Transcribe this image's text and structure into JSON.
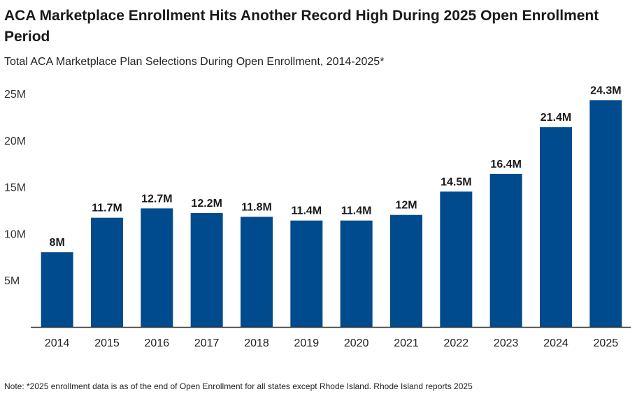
{
  "title": "ACA Marketplace Enrollment Hits Another Record High During 2025 Open Enrollment Period",
  "subtitle": "Total ACA Marketplace Plan Selections During Open Enrollment, 2014-2025*",
  "note": "Note: *2025 enrollment data is as of the end of Open Enrollment for all states except Rhode Island. Rhode Island reports 2025",
  "colors": {
    "bar": "#004B8D",
    "axis": "#333333"
  },
  "chart_data": {
    "type": "bar",
    "title": "Total ACA Marketplace Plan Selections During Open Enrollment, 2014-2025*",
    "xlabel": "",
    "ylabel": "",
    "unit": "millions",
    "ylim": [
      0,
      25
    ],
    "y_ticks": [
      5,
      10,
      15,
      20,
      25
    ],
    "y_tick_labels": [
      "5M",
      "10M",
      "15M",
      "20M",
      "25M"
    ],
    "grid": false,
    "categories": [
      "2014",
      "2015",
      "2016",
      "2017",
      "2018",
      "2019",
      "2020",
      "2021",
      "2022",
      "2023",
      "2024",
      "2025"
    ],
    "values": [
      8,
      11.7,
      12.7,
      12.2,
      11.8,
      11.4,
      11.4,
      12,
      14.5,
      16.4,
      21.4,
      24.3
    ],
    "data_labels": [
      "8M",
      "11.7M",
      "12.7M",
      "12.2M",
      "11.8M",
      "11.4M",
      "11.4M",
      "12M",
      "14.5M",
      "16.4M",
      "21.4M",
      "24.3M"
    ]
  }
}
